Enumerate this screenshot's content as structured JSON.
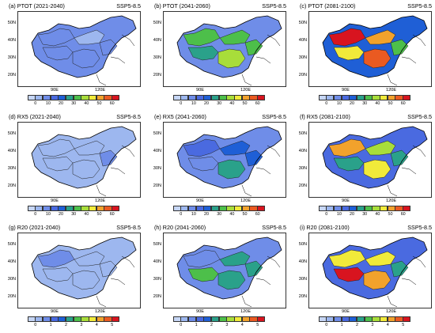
{
  "palette": [
    "#c6d6f5",
    "#9db7ef",
    "#6f8de8",
    "#4a6ae0",
    "#1f5fd6",
    "#2aa18a",
    "#4dbf4a",
    "#a8dd3a",
    "#f1ea3a",
    "#f2a22c",
    "#ea5a21",
    "#d8141f"
  ],
  "panels": [
    {
      "title": "(a) PTOT (2021-2040)",
      "scenario": "SSP5-8.5",
      "ticks": [
        "0",
        "10",
        "20",
        "30",
        "40",
        "50",
        "60"
      ],
      "level": 0.2
    },
    {
      "title": "(b) PTOT (2041-2060)",
      "scenario": "SSP5-8.5",
      "ticks": [
        "0",
        "10",
        "20",
        "30",
        "40",
        "50",
        "60"
      ],
      "level": 0.45
    },
    {
      "title": "(c) PTOT (2081-2100)",
      "scenario": "SSP5-8.5",
      "ticks": [
        "0",
        "10",
        "20",
        "30",
        "40",
        "50",
        "60"
      ],
      "level": 0.85
    },
    {
      "title": "(d) RX5 (2021-2040)",
      "scenario": "SSP5-8.5",
      "ticks": [
        "0",
        "10",
        "20",
        "30",
        "40",
        "50",
        "60"
      ],
      "level": 0.15
    },
    {
      "title": "(e) RX5 (2041-2060)",
      "scenario": "SSP5-8.5",
      "ticks": [
        "0",
        "10",
        "20",
        "30",
        "40",
        "50",
        "60"
      ],
      "level": 0.3
    },
    {
      "title": "(f) RX5 (2081-2100)",
      "scenario": "SSP5-8.5",
      "ticks": [
        "0",
        "10",
        "20",
        "30",
        "40",
        "50",
        "60"
      ],
      "level": 0.7
    },
    {
      "title": "(g) R20 (2021-2040)",
      "scenario": "SSP5-8.5",
      "ticks": [
        "0",
        "1",
        "2",
        "3",
        "4",
        "5"
      ],
      "level": 0.1
    },
    {
      "title": "(h) R20 (2041-2060)",
      "scenario": "SSP5-8.5",
      "ticks": [
        "0",
        "1",
        "2",
        "3",
        "4",
        "5"
      ],
      "level": 0.35
    },
    {
      "title": "(i) R20 (2081-2100)",
      "scenario": "SSP5-8.5",
      "ticks": [
        "0",
        "1",
        "2",
        "3",
        "4",
        "5"
      ],
      "level": 0.8
    }
  ],
  "lat_labels": [
    "50N",
    "40N",
    "30N",
    "20N"
  ],
  "lon_labels": [
    "90E",
    "120E"
  ]
}
